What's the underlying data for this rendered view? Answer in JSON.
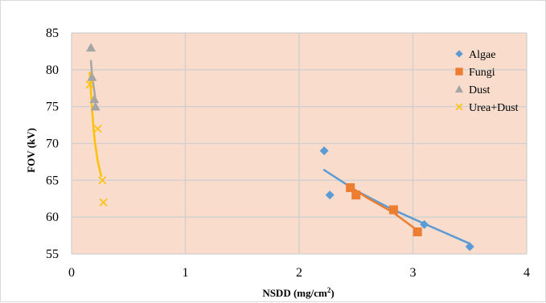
{
  "chart_data": {
    "type": "scatter",
    "title": "",
    "xlabel": "NSDD (mg/cm",
    "xlabel_superscript": "2",
    "xlabel_suffix": ")",
    "ylabel": "FOV (kV)",
    "xlim": [
      0,
      4
    ],
    "ylim": [
      55,
      85
    ],
    "x_ticks": [
      "0",
      "1",
      "2",
      "3",
      "4"
    ],
    "y_ticks": [
      "55",
      "60",
      "65",
      "70",
      "75",
      "80",
      "85"
    ],
    "grid": "major gridlines on",
    "plot_background": "#f9dccc",
    "legend_position": "top-right",
    "series": [
      {
        "name": "Algae",
        "marker": "diamond",
        "color": "#5b9bd5",
        "points": [
          [
            2.22,
            69
          ],
          [
            2.27,
            63
          ],
          [
            2.45,
            64
          ],
          [
            3.1,
            59
          ],
          [
            3.5,
            56
          ]
        ],
        "trendline": [
          [
            2.22,
            66.4
          ],
          [
            2.5,
            63.6
          ],
          [
            2.8,
            61.2
          ],
          [
            3.1,
            59.1
          ],
          [
            3.5,
            56.4
          ]
        ]
      },
      {
        "name": "Fungi",
        "marker": "square",
        "color": "#ed7d31",
        "points": [
          [
            2.45,
            64
          ],
          [
            2.5,
            63
          ],
          [
            2.83,
            61
          ],
          [
            3.04,
            58
          ]
        ],
        "trendline": [
          [
            2.45,
            64.1
          ],
          [
            2.6,
            62.6
          ],
          [
            2.83,
            60.6
          ],
          [
            3.04,
            58.2
          ]
        ]
      },
      {
        "name": "Dust",
        "marker": "triangle",
        "color": "#a5a5a5",
        "points": [
          [
            0.17,
            83
          ],
          [
            0.18,
            79
          ],
          [
            0.2,
            76
          ],
          [
            0.21,
            75
          ]
        ],
        "trendline": [
          [
            0.17,
            81.2
          ],
          [
            0.18,
            79.2
          ],
          [
            0.2,
            77.1
          ],
          [
            0.21,
            75.9
          ]
        ]
      },
      {
        "name": "Urea+Dust",
        "marker": "x",
        "color": "#ffc000",
        "points": [
          [
            0.16,
            78
          ],
          [
            0.23,
            72
          ],
          [
            0.27,
            65
          ],
          [
            0.28,
            62
          ]
        ],
        "trendline": [
          [
            0.16,
            79.6
          ],
          [
            0.18,
            74.6
          ],
          [
            0.2,
            70.8
          ],
          [
            0.23,
            67.6
          ],
          [
            0.26,
            65.6
          ]
        ]
      }
    ]
  }
}
